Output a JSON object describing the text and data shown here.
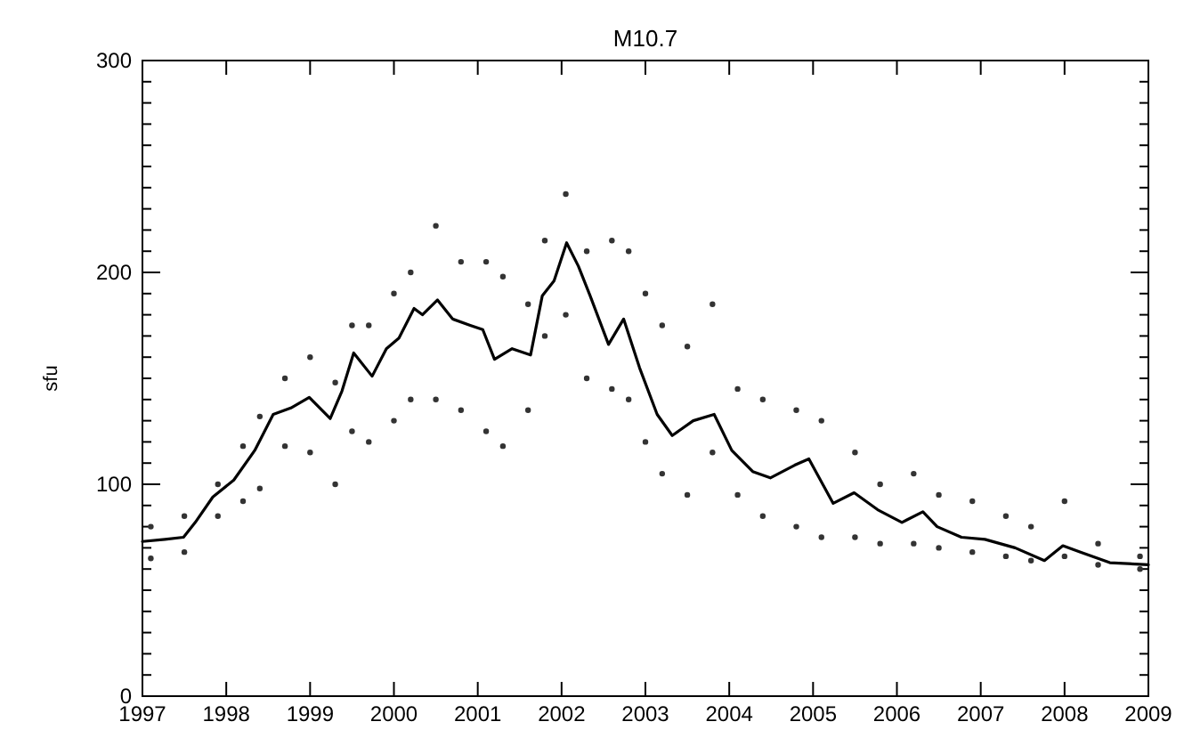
{
  "chart_data": {
    "type": "line",
    "title": "M10.7",
    "ylabel": "sfu",
    "xlim": [
      1997,
      2009
    ],
    "ylim": [
      0,
      300
    ],
    "xticks": [
      1997,
      1998,
      1999,
      2000,
      2001,
      2002,
      2003,
      2004,
      2005,
      2006,
      2007,
      2008,
      2009
    ],
    "yticks": [
      0,
      {
        "value": 10,
        "label": null
      },
      {
        "value": 20,
        "label": null
      },
      {
        "value": 30,
        "label": null
      },
      {
        "value": 40,
        "label": null
      },
      {
        "value": 50,
        "label": null
      },
      {
        "value": 60,
        "label": null
      },
      {
        "value": 70,
        "label": null
      },
      {
        "value": 80,
        "label": null
      },
      {
        "value": 90,
        "label": null
      },
      100,
      {
        "value": 110,
        "label": null
      },
      {
        "value": 120,
        "label": null
      },
      {
        "value": 130,
        "label": null
      },
      {
        "value": 140,
        "label": null
      },
      {
        "value": 150,
        "label": null
      },
      {
        "value": 160,
        "label": null
      },
      {
        "value": 170,
        "label": null
      },
      {
        "value": 180,
        "label": null
      },
      {
        "value": 190,
        "label": null
      },
      200,
      {
        "value": 210,
        "label": null
      },
      {
        "value": 220,
        "label": null
      },
      {
        "value": 230,
        "label": null
      },
      {
        "value": 240,
        "label": null
      },
      {
        "value": 250,
        "label": null
      },
      {
        "value": 260,
        "label": null
      },
      {
        "value": 270,
        "label": null
      },
      {
        "value": 280,
        "label": null
      },
      {
        "value": 290,
        "label": null
      },
      300
    ],
    "grid": false,
    "series": [
      {
        "type": "scatter",
        "color": "#333333",
        "x": [
          1997.1,
          1997.1,
          1997.5,
          1997.5,
          1997.9,
          1997.9,
          1998.2,
          1998.2,
          1998.4,
          1998.4,
          1998.7,
          1998.7,
          1999.0,
          1999.0,
          1999.3,
          1999.3,
          1999.5,
          1999.5,
          1999.7,
          1999.7,
          2000.0,
          2000.0,
          2000.2,
          2000.2,
          2000.5,
          2000.5,
          2000.8,
          2000.8,
          2001.1,
          2001.1,
          2001.3,
          2001.3,
          2001.6,
          2001.6,
          2001.8,
          2001.8,
          2002.05,
          2002.05,
          2002.3,
          2002.3,
          2002.6,
          2002.6,
          2002.8,
          2002.8,
          2003.0,
          2003.0,
          2003.2,
          2003.2,
          2003.5,
          2003.5,
          2003.8,
          2003.8,
          2004.1,
          2004.1,
          2004.4,
          2004.4,
          2004.8,
          2004.8,
          2005.1,
          2005.1,
          2005.5,
          2005.5,
          2005.8,
          2005.8,
          2006.2,
          2006.2,
          2006.5,
          2006.5,
          2006.9,
          2006.9,
          2007.3,
          2007.3,
          2007.6,
          2007.6,
          2008.0,
          2008.0,
          2008.4,
          2008.4,
          2008.9,
          2008.9
        ],
        "values": [
          80,
          65,
          85,
          68,
          100,
          85,
          118,
          92,
          132,
          98,
          150,
          118,
          160,
          115,
          148,
          100,
          175,
          125,
          175,
          120,
          190,
          130,
          200,
          140,
          222,
          140,
          205,
          135,
          205,
          125,
          198,
          118,
          185,
          135,
          215,
          170,
          237,
          180,
          210,
          150,
          215,
          145,
          210,
          140,
          190,
          120,
          175,
          105,
          165,
          95,
          185,
          115,
          145,
          95,
          140,
          85,
          135,
          80,
          130,
          75,
          115,
          75,
          100,
          72,
          105,
          72,
          95,
          70,
          92,
          68,
          85,
          66,
          80,
          64,
          92,
          66,
          72,
          62,
          66,
          60
        ]
      },
      {
        "color": "#000000",
        "x": [
          1997.0,
          1997.27,
          1997.49,
          1997.63,
          1997.84,
          1998.09,
          1998.34,
          1998.56,
          1998.77,
          1998.99,
          1999.24,
          1999.38,
          1999.52,
          1999.74,
          1999.91,
          2000.06,
          2000.24,
          2000.34,
          2000.52,
          2000.7,
          2000.91,
          2001.06,
          2001.2,
          2001.41,
          2001.63,
          2001.77,
          2001.91,
          2002.06,
          2002.2,
          2002.34,
          2002.56,
          2002.74,
          2002.93,
          2003.14,
          2003.32,
          2003.57,
          2003.82,
          2004.03,
          2004.28,
          2004.49,
          2004.78,
          2004.95,
          2005.24,
          2005.49,
          2005.77,
          2006.06,
          2006.31,
          2006.48,
          2006.77,
          2007.05,
          2007.41,
          2007.76,
          2007.98,
          2008.19,
          2008.54,
          2009.0
        ],
        "values": [
          73,
          74,
          75,
          82,
          94,
          102,
          116,
          133,
          136,
          141,
          131,
          144,
          162,
          151,
          164,
          169,
          183,
          180,
          187,
          178,
          175,
          173,
          159,
          164,
          161,
          189,
          196,
          214,
          203,
          189,
          166,
          178,
          155,
          133,
          123,
          130,
          133,
          116,
          106,
          103,
          109,
          112,
          91,
          96,
          88,
          82,
          87,
          80,
          75,
          74,
          70,
          64,
          71,
          68,
          63,
          62
        ]
      }
    ]
  }
}
